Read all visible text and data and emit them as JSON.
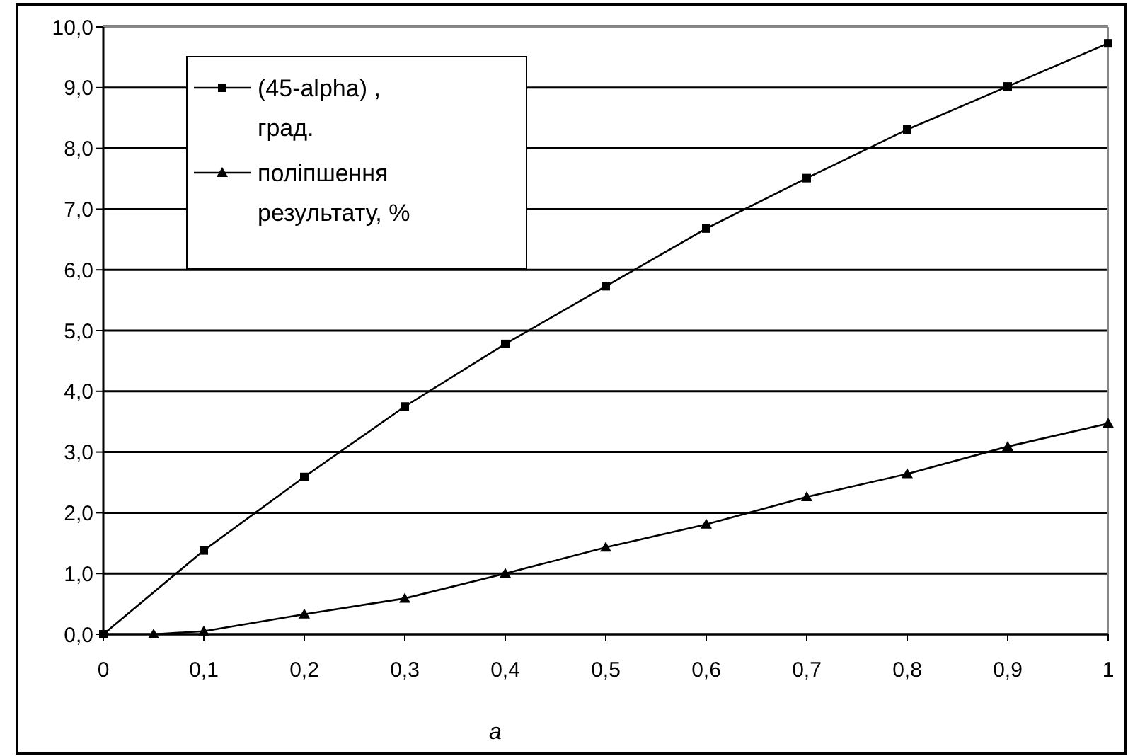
{
  "chart_data": {
    "type": "line",
    "xlabel": "a",
    "x": [
      0,
      0.1,
      0.2,
      0.3,
      0.4,
      0.5,
      0.6,
      0.7,
      0.8,
      0.9,
      1
    ],
    "series": [
      {
        "name": "(45-alpha) , град.",
        "color": "#000000",
        "marker": "square",
        "values": [
          0,
          1.38,
          2.59,
          3.75,
          4.78,
          5.73,
          6.68,
          7.51,
          8.31,
          9.02,
          9.73
        ]
      },
      {
        "name": "поліпшення результату, %",
        "color": "#000000",
        "marker": "triangle",
        "x": [
          0.05,
          0.1,
          0.2,
          0.3,
          0.4,
          0.5,
          0.6,
          0.7,
          0.8,
          0.9,
          1
        ],
        "values": [
          0,
          0.05,
          0.33,
          0.59,
          1.0,
          1.43,
          1.81,
          2.26,
          2.64,
          3.09,
          3.47
        ]
      }
    ],
    "xlim": [
      0,
      1
    ],
    "xticks": [
      0,
      {
        "value": 0.1,
        "label": "0,1"
      },
      {
        "value": 0.2,
        "label": "0,2"
      },
      {
        "value": 0.3,
        "label": "0,3"
      },
      {
        "value": 0.4,
        "label": "0,4"
      },
      {
        "value": 0.5,
        "label": "0,5"
      },
      {
        "value": 0.6,
        "label": "0,6"
      },
      {
        "value": 0.7,
        "label": "0,7"
      },
      {
        "value": 0.8,
        "label": "0,8"
      },
      {
        "value": 0.9,
        "label": "0,9"
      },
      1
    ],
    "ylim": [
      0,
      10
    ],
    "yticks": [
      {
        "value": 0,
        "label": "0,0"
      },
      {
        "value": 1,
        "label": "1,0"
      },
      {
        "value": 2,
        "label": "2,0"
      },
      {
        "value": 3,
        "label": "3,0"
      },
      {
        "value": 4,
        "label": "4,0"
      },
      {
        "value": 5,
        "label": "5,0"
      },
      {
        "value": 6,
        "label": "6,0"
      },
      {
        "value": 7,
        "label": "7,0"
      },
      {
        "value": 8,
        "label": "8,0"
      },
      {
        "value": 9,
        "label": "9,0"
      },
      {
        "value": 10,
        "label": "10,0"
      }
    ],
    "grid": "y",
    "legend": "top left",
    "line_style": "solid"
  }
}
